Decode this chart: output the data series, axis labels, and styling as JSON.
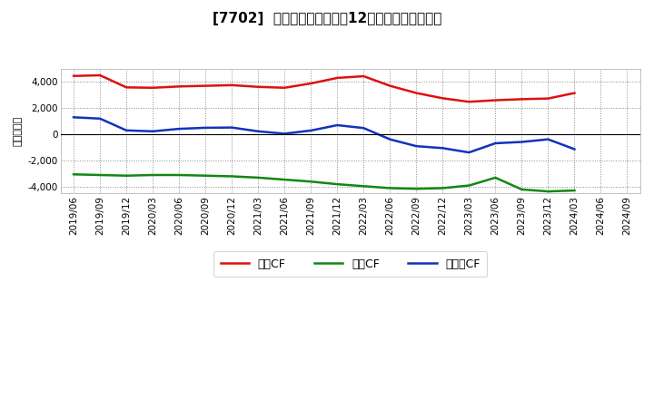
{
  "title": "[7702]  キャッシュフローの12か月移動合計の推移",
  "ylabel": "（百万円）",
  "x_labels": [
    "2019/06",
    "2019/09",
    "2019/12",
    "2020/03",
    "2020/06",
    "2020/09",
    "2020/12",
    "2021/03",
    "2021/06",
    "2021/09",
    "2021/12",
    "2022/03",
    "2022/06",
    "2022/09",
    "2022/12",
    "2023/03",
    "2023/06",
    "2023/09",
    "2023/12",
    "2024/03",
    "2024/06",
    "2024/09"
  ],
  "eigyo_cf": [
    4450,
    4500,
    3580,
    3550,
    3650,
    3700,
    3750,
    3620,
    3550,
    3880,
    4300,
    4430,
    3700,
    3150,
    2750,
    2480,
    2600,
    2680,
    2730,
    3150,
    null,
    null
  ],
  "toshi_cf": [
    -3050,
    -3100,
    -3150,
    -3100,
    -3100,
    -3150,
    -3200,
    -3300,
    -3450,
    -3600,
    -3800,
    -3950,
    -4100,
    -4150,
    -4100,
    -3900,
    -3300,
    -4200,
    -4350,
    -4280,
    null,
    null
  ],
  "free_cf": [
    1300,
    1200,
    300,
    230,
    420,
    500,
    520,
    230,
    50,
    290,
    700,
    480,
    -380,
    -900,
    -1050,
    -1380,
    -680,
    -580,
    -380,
    -1130,
    null,
    null
  ],
  "eigyo_color": "#dd1111",
  "toshi_color": "#118811",
  "free_color": "#1133bb",
  "bg_color": "#ffffff",
  "plot_bg_color": "#ffffff",
  "ylim": [
    -4500,
    5000
  ],
  "yticks": [
    -4000,
    -2000,
    0,
    2000,
    4000
  ],
  "legend_labels": [
    "営業CF",
    "投資CF",
    "フリーCF"
  ]
}
